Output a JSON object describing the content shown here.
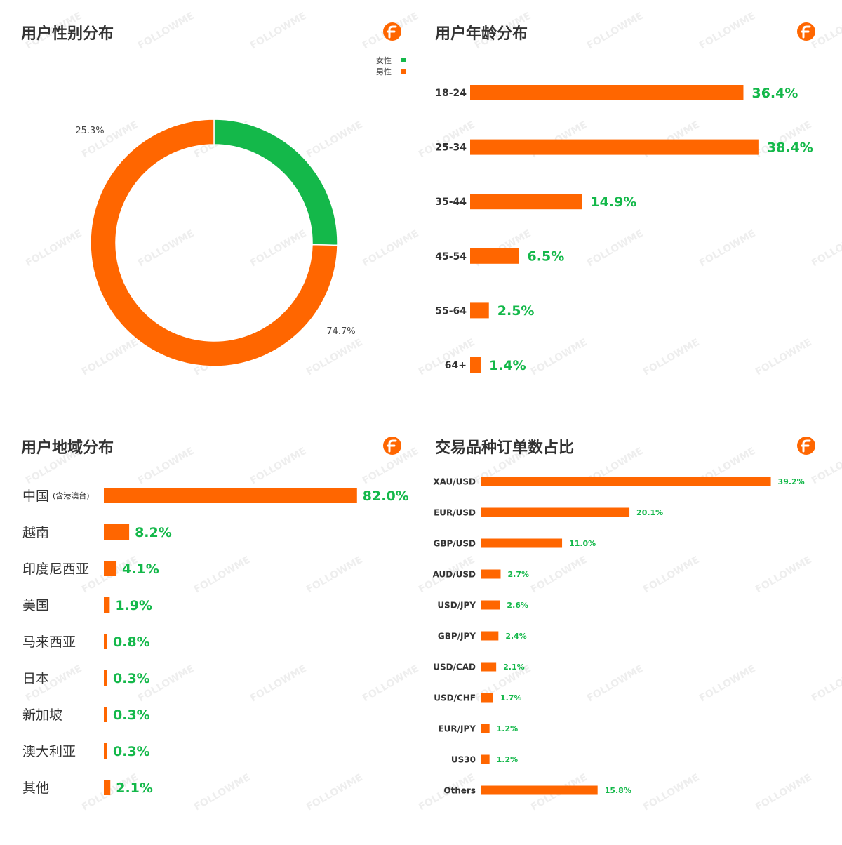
{
  "colors": {
    "male": "#FF6600",
    "female": "#14B84A",
    "label_green": "#14B84A",
    "text": "#333333"
  },
  "watermark": "FOLLOWME",
  "chart_data": [
    {
      "id": "gender",
      "type": "pie",
      "title": "用户性别分布",
      "legend": {
        "placement": "top-right",
        "entries": [
          "女性",
          "男性"
        ]
      },
      "slices": [
        {
          "name": "女性",
          "value": 25.3,
          "label": "25.3%"
        },
        {
          "name": "男性",
          "value": 74.7,
          "label": "74.7%"
        }
      ]
    },
    {
      "id": "age",
      "type": "bar",
      "title": "用户年龄分布",
      "categories": [
        "18-24",
        "25-34",
        "35-44",
        "45-54",
        "55-64",
        "64+"
      ],
      "values": [
        36.4,
        38.4,
        14.9,
        6.5,
        2.5,
        1.4
      ],
      "labels": [
        "36.4%",
        "38.4%",
        "14.9%",
        "6.5%",
        "2.5%",
        "1.4%"
      ]
    },
    {
      "id": "region",
      "type": "bar",
      "title": "用户地域分布",
      "categories": [
        "中国",
        "越南",
        "印度尼西亚",
        "美国",
        "马来西亚",
        "日本",
        "新加坡",
        "澳大利亚",
        "其他"
      ],
      "category_notes": [
        "(含港澳台)",
        "",
        "",
        "",
        "",
        "",
        "",
        "",
        ""
      ],
      "values": [
        82.0,
        8.2,
        4.1,
        1.9,
        0.8,
        0.3,
        0.3,
        0.3,
        2.1
      ],
      "labels": [
        "82.0%",
        "8.2%",
        "4.1%",
        "1.9%",
        "0.8%",
        "0.3%",
        "0.3%",
        "0.3%",
        "2.1%"
      ]
    },
    {
      "id": "trade",
      "type": "bar",
      "title": "交易品种订单数占比",
      "categories": [
        "XAU/USD",
        "EUR/USD",
        "GBP/USD",
        "AUD/USD",
        "USD/JPY",
        "GBP/JPY",
        "USD/CAD",
        "USD/CHF",
        "EUR/JPY",
        "US30",
        "Others"
      ],
      "values": [
        39.2,
        20.1,
        11.0,
        2.7,
        2.6,
        2.4,
        2.1,
        1.7,
        1.2,
        1.2,
        15.8
      ],
      "labels": [
        "39.2%",
        "20.1%",
        "11.0%",
        "2.7%",
        "2.6%",
        "2.4%",
        "2.1%",
        "1.7%",
        "1.2%",
        "1.2%",
        "15.8%"
      ]
    }
  ]
}
